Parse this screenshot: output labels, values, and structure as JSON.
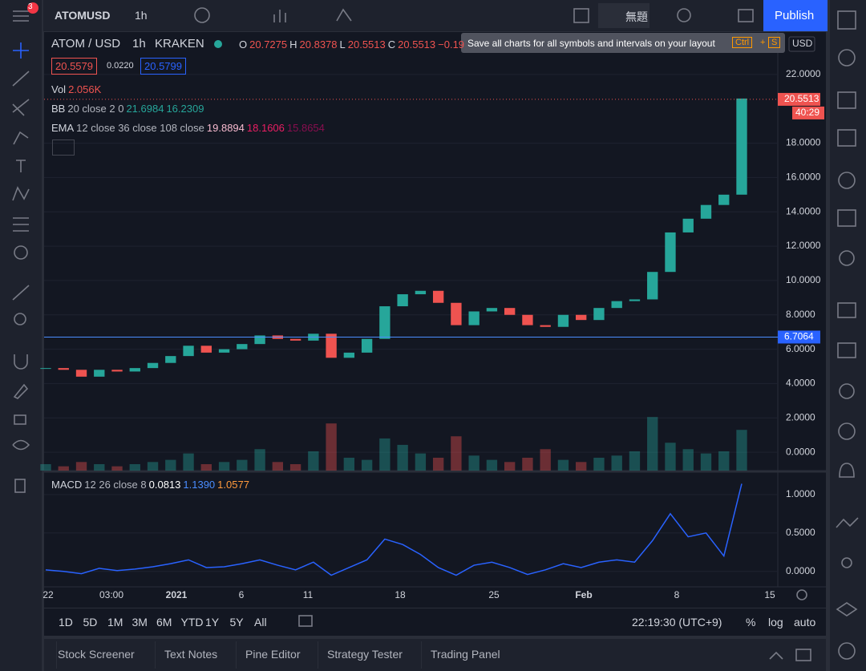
{
  "top_bar": {
    "badge": "3",
    "symbol": "ATOMUSD",
    "interval": "1h",
    "layout_name": "無題",
    "publish": "Publish"
  },
  "tooltip": {
    "text": "Save all charts for all symbols and intervals on your layout",
    "keys": [
      "Ctrl",
      "+",
      "S"
    ]
  },
  "legend": {
    "symbol": "ATOM / USD",
    "interval": "1h",
    "exchange": "KRAKEN",
    "ohlc": [
      {
        "label": "O",
        "value": "20.7275"
      },
      {
        "label": "H",
        "value": "20.8378"
      },
      {
        "label": "L",
        "value": "20.5513"
      },
      {
        "label": "C",
        "value": "20.5513"
      }
    ],
    "change": "−0.19",
    "bid": "20.5579",
    "spread": "0.0220",
    "ask": "20.5799"
  },
  "indicators": [
    {
      "name": "Vol",
      "values": [
        "2.056K"
      ]
    },
    {
      "name": "BB",
      "params": "20 close 2 0",
      "values": [
        "21.6984",
        "16.2309"
      ]
    },
    {
      "name": "EMA",
      "params": "12 close 36 close 108 close",
      "values": [
        "19.8894",
        "18.1606",
        "15.8654"
      ]
    }
  ],
  "macd": {
    "name": "MACD",
    "params": "12 26 close 8",
    "values": [
      "0.0813",
      "1.1390",
      "1.0577"
    ]
  },
  "price_chart": {
    "type": "candlestick",
    "close": [
      4.9,
      4.8,
      4.4,
      4.8,
      4.7,
      4.9,
      5.2,
      5.6,
      6.2,
      5.8,
      6.0,
      6.3,
      6.8,
      6.6,
      6.5,
      6.9,
      5.5,
      5.8,
      6.6,
      8.5,
      9.2,
      9.4,
      8.7,
      7.4,
      8.2,
      8.4,
      8.0,
      7.4,
      7.3,
      8.0,
      7.7,
      8.4,
      8.8,
      8.9,
      10.5,
      12.8,
      13.6,
      14.4,
      15.0,
      20.6
    ],
    "volume": [
      0.3,
      0.2,
      0.4,
      0.3,
      0.2,
      0.3,
      0.4,
      0.5,
      0.8,
      0.3,
      0.4,
      0.5,
      1.0,
      0.4,
      0.3,
      0.9,
      2.2,
      0.6,
      0.5,
      1.5,
      1.2,
      0.8,
      0.6,
      1.6,
      0.7,
      0.5,
      0.4,
      0.6,
      1.0,
      0.5,
      0.4,
      0.6,
      0.7,
      0.9,
      2.5,
      1.3,
      1.0,
      0.8,
      0.9,
      1.9
    ],
    "macd_line": [
      0.02,
      0.0,
      -0.03,
      0.04,
      0.01,
      0.03,
      0.06,
      0.1,
      0.15,
      0.05,
      0.06,
      0.1,
      0.15,
      0.08,
      0.02,
      0.12,
      -0.05,
      0.05,
      0.15,
      0.42,
      0.35,
      0.22,
      0.05,
      -0.05,
      0.08,
      0.12,
      0.05,
      -0.04,
      0.02,
      0.1,
      0.05,
      0.12,
      0.15,
      0.12,
      0.4,
      0.75,
      0.45,
      0.5,
      0.2,
      1.14
    ],
    "ylim": [
      -1.07,
      24.47
    ],
    "yticks": [
      {
        "value": 0,
        "label": "0.0000"
      },
      {
        "value": 2,
        "label": "2.0000"
      },
      {
        "value": 4,
        "label": "4.0000"
      },
      {
        "value": 6,
        "label": "6.0000"
      },
      {
        "value": 8,
        "label": "8.0000"
      },
      {
        "value": 10,
        "label": "10.0000"
      },
      {
        "value": 12,
        "label": "12.0000"
      },
      {
        "value": 14,
        "label": "14.0000"
      },
      {
        "value": 16,
        "label": "16.0000"
      },
      {
        "value": 18,
        "label": "18.0000"
      },
      {
        "value": 22,
        "label": "22.0000"
      }
    ],
    "volume_ylim": [
      0,
      5.5
    ],
    "macd_ylim": [
      -0.18,
      1.28
    ],
    "macd_yticks": [
      {
        "value": 0,
        "label": "0.0000"
      },
      {
        "value": 0.5,
        "label": "0.5000"
      },
      {
        "value": 1,
        "label": "1.0000"
      }
    ],
    "current_price": 20.5513,
    "countdown": "40:29",
    "hline": 6.7064,
    "currency": "USD",
    "x_labels": [
      "22",
      "03:00",
      "2021",
      "6",
      "11",
      "18",
      "25",
      "Feb",
      "8",
      "15"
    ]
  },
  "timeframes": [
    "1D",
    "5D",
    "1M",
    "3M",
    "6M",
    "YTD",
    "1Y",
    "5Y",
    "All"
  ],
  "clock": "22:19:30 (UTC+9)",
  "scale_options": [
    "%",
    "log",
    "auto"
  ],
  "tabs": [
    "Stock Screener",
    "Text Notes",
    "Pine Editor",
    "Strategy Tester",
    "Trading Panel"
  ]
}
